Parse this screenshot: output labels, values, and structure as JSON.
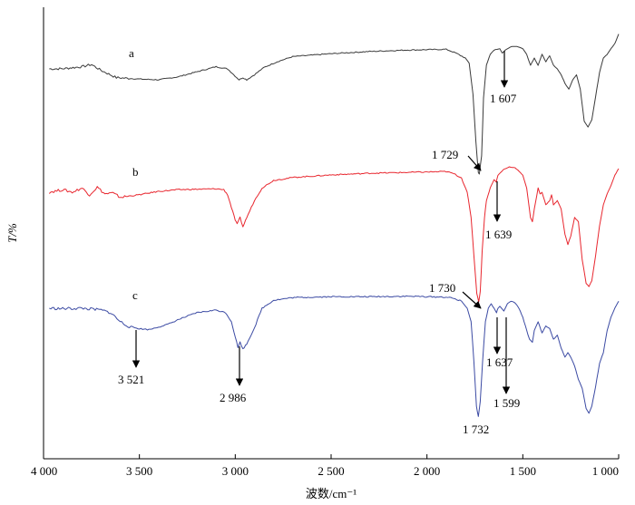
{
  "chart_data": {
    "type": "line",
    "xlabel": "波数/cm⁻¹",
    "ylabel": "T/%",
    "xlim": [
      4000,
      1000
    ],
    "x_reversed": true,
    "grid": false,
    "x_ticks": [
      {
        "value": 4000,
        "label": "4 000"
      },
      {
        "value": 3500,
        "label": "3 500"
      },
      {
        "value": 3000,
        "label": "3 000"
      },
      {
        "value": 2500,
        "label": "2 500"
      },
      {
        "value": 2000,
        "label": "2 000"
      },
      {
        "value": 1500,
        "label": "1 500"
      },
      {
        "value": 1000,
        "label": "1 000"
      }
    ],
    "series": [
      {
        "name": "a",
        "color": "#3a3a3a",
        "points": [
          [
            3970,
            0.0
          ],
          [
            3900,
            0.3
          ],
          [
            3800,
            3.0
          ],
          [
            3750,
            6.0
          ],
          [
            3700,
            -2.0
          ],
          [
            3620,
            -12.0
          ],
          [
            3500,
            -14.0
          ],
          [
            3400,
            -15.0
          ],
          [
            3300,
            -11.0
          ],
          [
            3200,
            -4.0
          ],
          [
            3100,
            3.0
          ],
          [
            3040,
            0.0
          ],
          [
            3000,
            -10.0
          ],
          [
            2980,
            -15.0
          ],
          [
            2960,
            -12.0
          ],
          [
            2940,
            -15.0
          ],
          [
            2900,
            -8.0
          ],
          [
            2850,
            2.0
          ],
          [
            2780,
            10.0
          ],
          [
            2700,
            17.0
          ],
          [
            2500,
            21.0
          ],
          [
            2300,
            24.0
          ],
          [
            2100,
            26.0
          ],
          [
            1900,
            27.0
          ],
          [
            1850,
            22.0
          ],
          [
            1800,
            15.0
          ],
          [
            1780,
            8.0
          ],
          [
            1760,
            -35.0
          ],
          [
            1745,
            -100.0
          ],
          [
            1732,
            -143.0
          ],
          [
            1727,
            -145.0
          ],
          [
            1715,
            -120.0
          ],
          [
            1705,
            -40.0
          ],
          [
            1690,
            5.0
          ],
          [
            1670,
            20.0
          ],
          [
            1650,
            26.0
          ],
          [
            1620,
            28.0
          ],
          [
            1607,
            22.0
          ],
          [
            1590,
            26.0
          ],
          [
            1560,
            31.0
          ],
          [
            1530,
            31.0
          ],
          [
            1500,
            28.0
          ],
          [
            1480,
            20.0
          ],
          [
            1460,
            5.0
          ],
          [
            1440,
            15.0
          ],
          [
            1420,
            5.0
          ],
          [
            1400,
            20.0
          ],
          [
            1380,
            10.0
          ],
          [
            1360,
            18.0
          ],
          [
            1340,
            5.0
          ],
          [
            1320,
            0.0
          ],
          [
            1300,
            -8.0
          ],
          [
            1280,
            -20.0
          ],
          [
            1260,
            -28.0
          ],
          [
            1240,
            -15.0
          ],
          [
            1220,
            -8.0
          ],
          [
            1200,
            -28.0
          ],
          [
            1180,
            -72.0
          ],
          [
            1160,
            -80.0
          ],
          [
            1140,
            -70.0
          ],
          [
            1120,
            -38.0
          ],
          [
            1100,
            -5.0
          ],
          [
            1080,
            15.0
          ],
          [
            1060,
            20.0
          ],
          [
            1040,
            28.0
          ],
          [
            1020,
            35.0
          ],
          [
            1000,
            48.0
          ]
        ]
      },
      {
        "name": "b",
        "color": "#e8262e",
        "points": [
          [
            3970,
            0.0
          ],
          [
            3900,
            3.0
          ],
          [
            3850,
            0.0
          ],
          [
            3800,
            5.0
          ],
          [
            3760,
            -3.0
          ],
          [
            3720,
            6.0
          ],
          [
            3680,
            -2.0
          ],
          [
            3640,
            -1.0
          ],
          [
            3600,
            -6.0
          ],
          [
            3500,
            -3.0
          ],
          [
            3400,
            1.0
          ],
          [
            3300,
            3.0
          ],
          [
            3200,
            3.5
          ],
          [
            3100,
            4.0
          ],
          [
            3060,
            3.0
          ],
          [
            3040,
            -3.0
          ],
          [
            3020,
            -18.0
          ],
          [
            3000,
            -33.0
          ],
          [
            2990,
            -38.0
          ],
          [
            2975,
            -30.0
          ],
          [
            2960,
            -41.0
          ],
          [
            2940,
            -30.0
          ],
          [
            2900,
            -10.0
          ],
          [
            2860,
            5.0
          ],
          [
            2800,
            14.0
          ],
          [
            2700,
            17.5
          ],
          [
            2500,
            20.5
          ],
          [
            2300,
            22.5
          ],
          [
            2100,
            23.5
          ],
          [
            1900,
            24.5
          ],
          [
            1860,
            22.0
          ],
          [
            1820,
            17.0
          ],
          [
            1790,
            0.0
          ],
          [
            1770,
            -30.0
          ],
          [
            1755,
            -75.0
          ],
          [
            1740,
            -120.0
          ],
          [
            1730,
            -130.0
          ],
          [
            1722,
            -118.0
          ],
          [
            1712,
            -70.0
          ],
          [
            1700,
            -30.0
          ],
          [
            1690,
            -10.0
          ],
          [
            1670,
            5.0
          ],
          [
            1650,
            15.0
          ],
          [
            1639,
            12.0
          ],
          [
            1630,
            20.0
          ],
          [
            1600,
            27.0
          ],
          [
            1570,
            30.0
          ],
          [
            1540,
            29.0
          ],
          [
            1520,
            25.0
          ],
          [
            1500,
            20.0
          ],
          [
            1480,
            5.0
          ],
          [
            1460,
            -30.0
          ],
          [
            1450,
            -35.0
          ],
          [
            1440,
            -20.0
          ],
          [
            1420,
            5.0
          ],
          [
            1410,
            -2.0
          ],
          [
            1400,
            0.0
          ],
          [
            1380,
            -15.0
          ],
          [
            1360,
            -10.0
          ],
          [
            1350,
            -3.0
          ],
          [
            1340,
            -15.0
          ],
          [
            1320,
            -10.0
          ],
          [
            1300,
            -20.0
          ],
          [
            1280,
            -50.0
          ],
          [
            1265,
            -62.0
          ],
          [
            1250,
            -52.0
          ],
          [
            1230,
            -30.0
          ],
          [
            1210,
            -35.0
          ],
          [
            1190,
            -80.0
          ],
          [
            1170,
            -108.0
          ],
          [
            1155,
            -112.0
          ],
          [
            1140,
            -105.0
          ],
          [
            1120,
            -75.0
          ],
          [
            1100,
            -40.0
          ],
          [
            1080,
            -15.0
          ],
          [
            1060,
            -2.0
          ],
          [
            1040,
            8.0
          ],
          [
            1020,
            20.0
          ],
          [
            1000,
            28.0
          ]
        ]
      },
      {
        "name": "c",
        "color": "#3b4aa3",
        "points": [
          [
            3970,
            0.0
          ],
          [
            3900,
            -0.5
          ],
          [
            3800,
            0.0
          ],
          [
            3700,
            -2.0
          ],
          [
            3650,
            -5.0
          ],
          [
            3600,
            -15.0
          ],
          [
            3560,
            -20.0
          ],
          [
            3521,
            -22.0
          ],
          [
            3500,
            -23.0
          ],
          [
            3450,
            -24.0
          ],
          [
            3400,
            -21.0
          ],
          [
            3350,
            -18.0
          ],
          [
            3300,
            -13.0
          ],
          [
            3200,
            -5.0
          ],
          [
            3100,
            -2.0
          ],
          [
            3050,
            -5.0
          ],
          [
            3020,
            -15.0
          ],
          [
            3000,
            -32.0
          ],
          [
            2986,
            -44.0
          ],
          [
            2975,
            -38.0
          ],
          [
            2960,
            -46.0
          ],
          [
            2940,
            -40.0
          ],
          [
            2900,
            -22.0
          ],
          [
            2860,
            0.0
          ],
          [
            2800,
            9.0
          ],
          [
            2700,
            12.0
          ],
          [
            2500,
            13.0
          ],
          [
            2300,
            13.0
          ],
          [
            2100,
            13.5
          ],
          [
            1900,
            12.5
          ],
          [
            1860,
            11.0
          ],
          [
            1820,
            8.0
          ],
          [
            1790,
            0.0
          ],
          [
            1770,
            -15.0
          ],
          [
            1755,
            -60.0
          ],
          [
            1742,
            -110.0
          ],
          [
            1732,
            -122.0
          ],
          [
            1722,
            -105.0
          ],
          [
            1710,
            -60.0
          ],
          [
            1695,
            -15.0
          ],
          [
            1680,
            0.0
          ],
          [
            1665,
            5.0
          ],
          [
            1650,
            0.0
          ],
          [
            1637,
            -5.0
          ],
          [
            1630,
            0.0
          ],
          [
            1620,
            2.0
          ],
          [
            1599,
            -3.0
          ],
          [
            1580,
            5.0
          ],
          [
            1560,
            8.0
          ],
          [
            1540,
            6.0
          ],
          [
            1520,
            0.0
          ],
          [
            1500,
            -10.0
          ],
          [
            1480,
            -25.0
          ],
          [
            1465,
            -35.0
          ],
          [
            1450,
            -38.0
          ],
          [
            1440,
            -25.0
          ],
          [
            1420,
            -15.0
          ],
          [
            1400,
            -28.0
          ],
          [
            1380,
            -20.0
          ],
          [
            1360,
            -23.0
          ],
          [
            1340,
            -35.0
          ],
          [
            1320,
            -30.0
          ],
          [
            1300,
            -45.0
          ],
          [
            1280,
            -55.0
          ],
          [
            1265,
            -50.0
          ],
          [
            1250,
            -55.0
          ],
          [
            1230,
            -65.0
          ],
          [
            1210,
            -80.0
          ],
          [
            1190,
            -90.0
          ],
          [
            1170,
            -113.0
          ],
          [
            1155,
            -118.0
          ],
          [
            1140,
            -110.0
          ],
          [
            1120,
            -88.0
          ],
          [
            1100,
            -62.0
          ],
          [
            1080,
            -50.0
          ],
          [
            1060,
            -25.0
          ],
          [
            1040,
            -10.0
          ],
          [
            1020,
            0.0
          ],
          [
            1000,
            8.0
          ]
        ]
      }
    ],
    "annotations": [
      {
        "text": "1 607",
        "series": "a",
        "at": 1607,
        "kind": "arrow-down"
      },
      {
        "text": "1 729",
        "series": "a",
        "at": 1729,
        "kind": "arrow-diag"
      },
      {
        "text": "1 639",
        "series": "b",
        "at": 1639,
        "kind": "arrow-down"
      },
      {
        "text": "1 730",
        "series": "c",
        "at": 1730,
        "kind": "arrow-diag"
      },
      {
        "text": "3 521",
        "series": "c",
        "at": 3521,
        "kind": "arrow-down"
      },
      {
        "text": "2 986",
        "series": "c",
        "at": 2986,
        "kind": "arrow-down"
      },
      {
        "text": "1 637",
        "series": "c",
        "at": 1637,
        "kind": "arrow-down"
      },
      {
        "text": "1 599",
        "series": "c",
        "at": 1599,
        "kind": "arrow-down"
      },
      {
        "text": "1 732",
        "series": "c",
        "at": 1732,
        "kind": "label-below"
      }
    ]
  }
}
